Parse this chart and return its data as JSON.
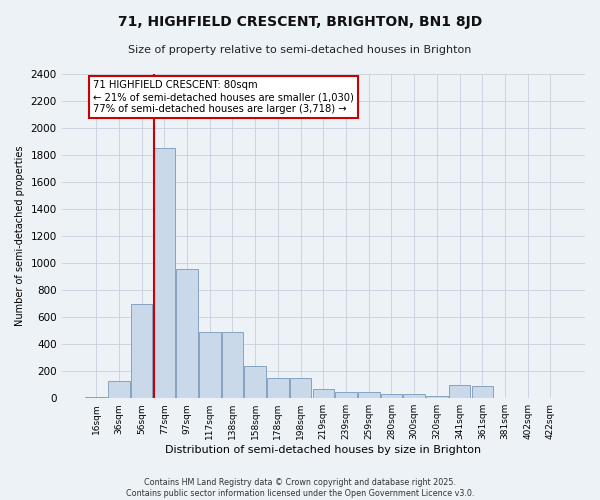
{
  "title": "71, HIGHFIELD CRESCENT, BRIGHTON, BN1 8JD",
  "subtitle": "Size of property relative to semi-detached houses in Brighton",
  "xlabel": "Distribution of semi-detached houses by size in Brighton",
  "ylabel": "Number of semi-detached properties",
  "bar_labels": [
    "16sqm",
    "36sqm",
    "56sqm",
    "77sqm",
    "97sqm",
    "117sqm",
    "138sqm",
    "158sqm",
    "178sqm",
    "198sqm",
    "219sqm",
    "239sqm",
    "259sqm",
    "280sqm",
    "300sqm",
    "320sqm",
    "341sqm",
    "361sqm",
    "381sqm",
    "402sqm",
    "422sqm"
  ],
  "bar_values": [
    10,
    130,
    700,
    1850,
    960,
    490,
    490,
    240,
    150,
    150,
    70,
    45,
    45,
    30,
    30,
    20,
    100,
    90,
    5,
    5,
    5
  ],
  "bar_color": "#c9d9ea",
  "bar_edge_color": "#7799bb",
  "vline_x_idx": 3,
  "vline_color": "#cc0000",
  "annotation_title": "71 HIGHFIELD CRESCENT: 80sqm",
  "annotation_line1": "← 21% of semi-detached houses are smaller (1,030)",
  "annotation_line2": "77% of semi-detached houses are larger (3,718) →",
  "annotation_box_facecolor": "#ffffff",
  "annotation_box_edgecolor": "#cc0000",
  "ylim": [
    0,
    2400
  ],
  "yticks": [
    0,
    200,
    400,
    600,
    800,
    1000,
    1200,
    1400,
    1600,
    1800,
    2000,
    2200,
    2400
  ],
  "footer_line1": "Contains HM Land Registry data © Crown copyright and database right 2025.",
  "footer_line2": "Contains public sector information licensed under the Open Government Licence v3.0.",
  "bg_color": "#edf2f7",
  "grid_color": "#c8d0dc"
}
